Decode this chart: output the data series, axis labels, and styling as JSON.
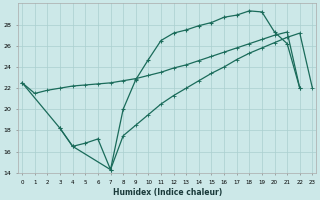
{
  "bg_color": "#cce8e8",
  "grid_color": "#aacfcf",
  "line_color": "#1a6b5a",
  "xlabel": "Humidex (Indice chaleur)",
  "xlim": [
    -0.3,
    23.3
  ],
  "ylim": [
    14,
    30
  ],
  "yticks": [
    14,
    16,
    18,
    20,
    22,
    24,
    26,
    28
  ],
  "xtick_labels": [
    "0",
    "1",
    "2",
    "3",
    "4",
    "5",
    "6",
    "7",
    "8",
    "9",
    "10",
    "11",
    "12",
    "13",
    "14",
    "15",
    "16",
    "17",
    "18",
    "19",
    "20",
    "21",
    "22",
    "23"
  ],
  "curve1_x": [
    0,
    1,
    2,
    3,
    4,
    5,
    6,
    7,
    8,
    9,
    10,
    11,
    12,
    13,
    14,
    15,
    16,
    17,
    18,
    19,
    20,
    21,
    22
  ],
  "curve1_y": [
    22.5,
    21.5,
    21.8,
    22.0,
    22.2,
    22.3,
    22.4,
    22.5,
    22.7,
    22.9,
    23.2,
    23.5,
    23.9,
    24.2,
    24.6,
    25.0,
    25.4,
    25.8,
    26.2,
    26.6,
    27.0,
    27.3,
    22.0
  ],
  "curve2_x": [
    0,
    3,
    4,
    5,
    6,
    7,
    8,
    9,
    10,
    11,
    12,
    13,
    14,
    15,
    16,
    17,
    18,
    19,
    20,
    21,
    22
  ],
  "curve2_y": [
    22.5,
    18.2,
    16.5,
    16.8,
    17.2,
    14.3,
    20.0,
    22.8,
    24.7,
    26.5,
    27.2,
    27.5,
    27.9,
    28.2,
    28.7,
    28.9,
    29.3,
    29.2,
    27.3,
    26.2,
    22.0
  ],
  "curve3_x": [
    3,
    4,
    7,
    8,
    9,
    10,
    11,
    12,
    13,
    14,
    15,
    16,
    17,
    18,
    19,
    20,
    21,
    22,
    23
  ],
  "curve3_y": [
    18.2,
    16.5,
    14.3,
    17.5,
    18.5,
    19.5,
    20.5,
    21.3,
    22.0,
    22.7,
    23.4,
    24.0,
    24.7,
    25.3,
    25.8,
    26.3,
    26.8,
    27.2,
    22.0
  ]
}
